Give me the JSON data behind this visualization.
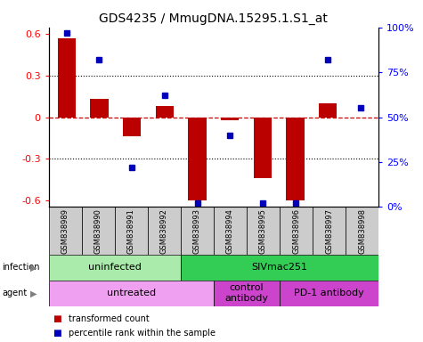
{
  "title": "GDS4235 / MmugDNA.15295.1.S1_at",
  "samples": [
    "GSM838989",
    "GSM838990",
    "GSM838991",
    "GSM838992",
    "GSM838993",
    "GSM838994",
    "GSM838995",
    "GSM838996",
    "GSM838997",
    "GSM838998"
  ],
  "bar_values": [
    0.57,
    0.13,
    -0.14,
    0.08,
    -0.6,
    -0.02,
    -0.44,
    -0.6,
    0.1,
    0.0
  ],
  "dot_values": [
    97,
    82,
    22,
    62,
    2,
    40,
    2,
    2,
    82,
    55
  ],
  "ylim": [
    -0.65,
    0.65
  ],
  "yticks": [
    -0.6,
    -0.3,
    0.0,
    0.3,
    0.6
  ],
  "ytick_labels": [
    "-0.6",
    "-0.3",
    "0",
    "0.3",
    "0.6"
  ],
  "y2ticks_pct": [
    0,
    25,
    50,
    75,
    100
  ],
  "y2labels": [
    "0%",
    "25%",
    "50%",
    "75%",
    "100%"
  ],
  "bar_color": "#bb0000",
  "dot_color": "#0000bb",
  "hline_color": "#cc0000",
  "grid_color": "#000000",
  "infection_segments": [
    {
      "text": "uninfected",
      "start": 0,
      "end": 3,
      "color": "#aaeaaa"
    },
    {
      "text": "SIVmac251",
      "start": 4,
      "end": 9,
      "color": "#33cc55"
    }
  ],
  "agent_segments": [
    {
      "text": "untreated",
      "start": 0,
      "end": 4,
      "color": "#f0a0f0"
    },
    {
      "text": "control\nantibody",
      "start": 5,
      "end": 6,
      "color": "#cc44cc"
    },
    {
      "text": "PD-1 antibody",
      "start": 7,
      "end": 9,
      "color": "#cc44cc"
    }
  ],
  "legend_items": [
    {
      "color": "#bb0000",
      "label": "transformed count"
    },
    {
      "color": "#0000bb",
      "label": "percentile rank within the sample"
    }
  ],
  "n_samples": 10,
  "sample_box_color": "#cccccc",
  "title_fontsize": 10,
  "bar_width": 0.55
}
